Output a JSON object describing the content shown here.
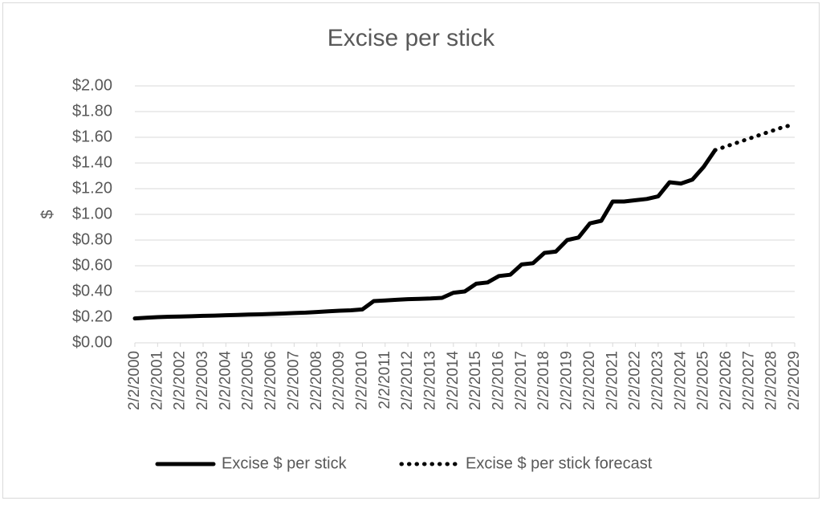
{
  "chart_data": {
    "type": "line",
    "title": "Excise per stick",
    "ylabel": "$",
    "categories": [
      "2/2/2000",
      null,
      "2/2/2001",
      null,
      "2/2/2002",
      null,
      "2/2/2003",
      null,
      "2/2/2004",
      null,
      "2/2/2005",
      null,
      "2/2/2006",
      null,
      "2/2/2007",
      null,
      "2/2/2008",
      null,
      "2/2/2009",
      null,
      "2/2/2010",
      null,
      "2/2/2011",
      null,
      "2/2/2012",
      null,
      "2/2/2013",
      null,
      "2/2/2014",
      null,
      "2/2/2015",
      null,
      "2/2/2016",
      null,
      "2/2/2017",
      null,
      "2/2/2018",
      null,
      "2/2/2019",
      null,
      "2/2/2020",
      null,
      "2/2/2021",
      null,
      "2/2/2022",
      null,
      "2/2/2023",
      null,
      "2/2/2024",
      null,
      "2/2/2025",
      null,
      "2/2/2026",
      null,
      "2/2/2027",
      null,
      "2/2/2028",
      null,
      "2/2/2029"
    ],
    "series": [
      {
        "name": "Excise $ per stick",
        "color": "#000000",
        "dash": "solid",
        "values": [
          0.19,
          0.195,
          0.2,
          0.203,
          0.205,
          0.207,
          0.21,
          0.212,
          0.215,
          0.217,
          0.22,
          0.222,
          0.225,
          0.228,
          0.232,
          0.235,
          0.24,
          0.245,
          0.25,
          0.253,
          0.26,
          0.325,
          0.33,
          0.335,
          0.34,
          0.342,
          0.345,
          0.35,
          0.39,
          0.4,
          0.46,
          0.47,
          0.52,
          0.53,
          0.61,
          0.62,
          0.7,
          0.71,
          0.8,
          0.82,
          0.93,
          0.95,
          1.1,
          1.1,
          1.11,
          1.12,
          1.14,
          1.25,
          1.24,
          1.27,
          1.37,
          1.5,
          null,
          null,
          null,
          null,
          null,
          null,
          null
        ]
      },
      {
        "name": "Excise $ per stick forecast",
        "color": "#000000",
        "dash": "dotted",
        "values": [
          null,
          null,
          null,
          null,
          null,
          null,
          null,
          null,
          null,
          null,
          null,
          null,
          null,
          null,
          null,
          null,
          null,
          null,
          null,
          null,
          null,
          null,
          null,
          null,
          null,
          null,
          null,
          null,
          null,
          null,
          null,
          null,
          null,
          null,
          null,
          null,
          null,
          null,
          null,
          null,
          null,
          null,
          null,
          null,
          null,
          null,
          null,
          null,
          null,
          null,
          null,
          1.5,
          1.53,
          1.56,
          1.59,
          1.62,
          1.65,
          1.68,
          1.7
        ]
      }
    ],
    "ylim": [
      0,
      2
    ],
    "yticks": [
      {
        "value": 0,
        "label": "$0.00"
      },
      {
        "value": 0.2,
        "label": "$0.20"
      },
      {
        "value": 0.4,
        "label": "$0.40"
      },
      {
        "value": 0.6,
        "label": "$0.60"
      },
      {
        "value": 0.8,
        "label": "$0.80"
      },
      {
        "value": 1,
        "label": "$1.00"
      },
      {
        "value": 1.2,
        "label": "$1.20"
      },
      {
        "value": 1.4,
        "label": "$1.40"
      },
      {
        "value": 1.6,
        "label": "$1.60"
      },
      {
        "value": 1.8,
        "label": "$1.80"
      },
      {
        "value": 2,
        "label": "$2.00"
      }
    ],
    "grid": true,
    "legend": "bottom"
  }
}
